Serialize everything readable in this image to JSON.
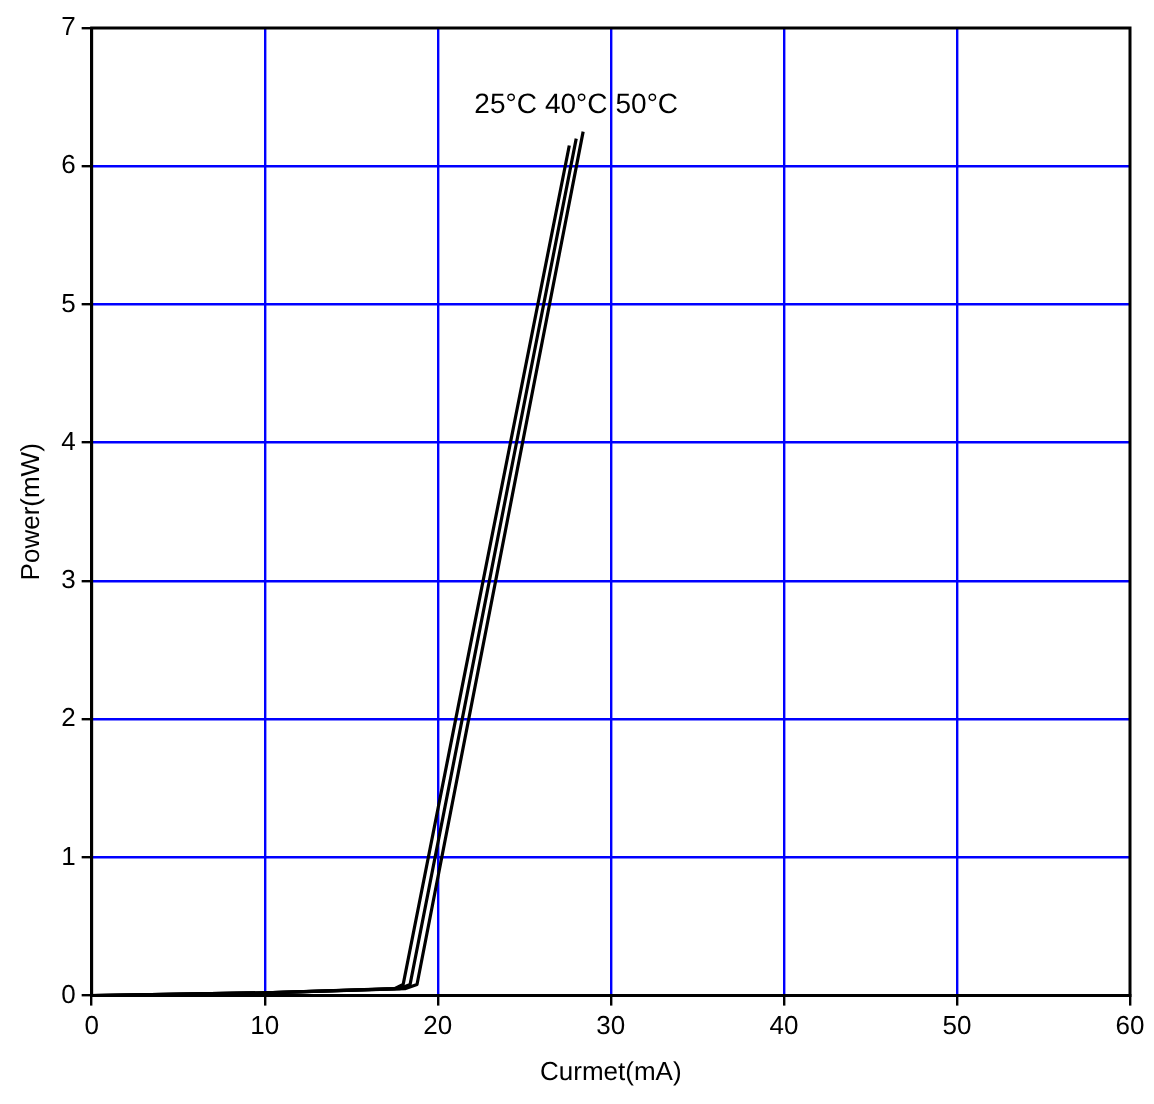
{
  "chart_data": {
    "type": "line",
    "xlabel": "Curmet(mA)",
    "ylabel": "Power(mW)",
    "xlim": [
      0,
      60
    ],
    "xticks": [
      0,
      10,
      20,
      30,
      40,
      50,
      60
    ],
    "ylim": [
      0,
      7
    ],
    "yticks": [
      0,
      1,
      2,
      3,
      4,
      5,
      6,
      7
    ],
    "grid": true,
    "legend": false,
    "marker": "none",
    "line_style": "solid",
    "series": [
      {
        "name": "25°C",
        "color": "#000000",
        "x": [
          0,
          10,
          17.5,
          18.0,
          27.6
        ],
        "values": [
          0,
          0.02,
          0.05,
          0.08,
          6.15
        ]
      },
      {
        "name": "40°C",
        "color": "#000000",
        "x": [
          0,
          10,
          17.8,
          18.4,
          28.0
        ],
        "values": [
          0,
          0.02,
          0.05,
          0.08,
          6.2
        ]
      },
      {
        "name": "50°C",
        "color": "#000000",
        "x": [
          0,
          10,
          18.1,
          18.8,
          28.4
        ],
        "values": [
          0,
          0.02,
          0.05,
          0.08,
          6.25
        ]
      }
    ]
  }
}
